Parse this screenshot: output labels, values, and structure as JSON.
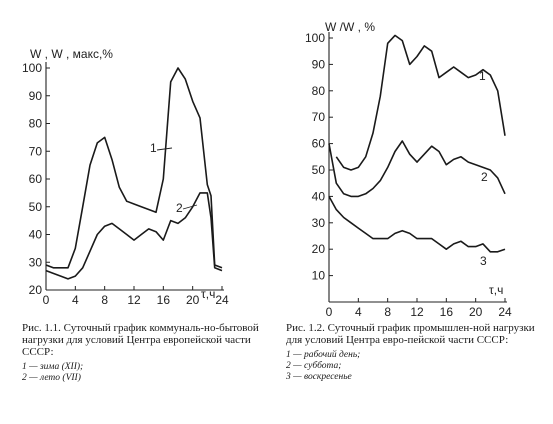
{
  "chart_data": [
    {
      "type": "line",
      "ylabel": "W , W , макс,%",
      "xlabel": "τ,ч",
      "xlim": [
        0,
        24
      ],
      "ylim": [
        20,
        100
      ],
      "xticks": [
        "0",
        "4",
        "8",
        "12",
        "16",
        "20",
        "24"
      ],
      "yticks": [
        "20",
        "30",
        "40",
        "50",
        "60",
        "70",
        "80",
        "90",
        "100"
      ],
      "series": [
        {
          "name": "1",
          "label": "1 — зима (XII);",
          "x": [
            0,
            1,
            2,
            3,
            4,
            5,
            6,
            7,
            8,
            9,
            10,
            11,
            12,
            13,
            14,
            15,
            16,
            17,
            18,
            19,
            20,
            21,
            22,
            22.5,
            23,
            24
          ],
          "y": [
            29,
            28,
            28,
            28,
            35,
            50,
            65,
            73,
            75,
            67,
            57,
            52,
            51,
            50,
            49,
            48,
            60,
            95,
            100,
            96,
            88,
            82,
            58,
            54,
            29,
            28
          ]
        },
        {
          "name": "2",
          "label": "2 — лето (VII)",
          "x": [
            0,
            1,
            2,
            3,
            4,
            5,
            6,
            7,
            8,
            9,
            10,
            11,
            12,
            13,
            14,
            15,
            16,
            17,
            18,
            19,
            20,
            21,
            22,
            22.5,
            23,
            24
          ],
          "y": [
            27,
            26,
            25,
            24,
            25,
            28,
            34,
            40,
            43,
            44,
            42,
            40,
            38,
            40,
            42,
            41,
            38,
            45,
            44,
            46,
            50,
            55,
            55,
            46,
            28,
            27
          ]
        }
      ],
      "caption_title": "Рис. 1.1. Суточный график коммуналь-но-бытовой нагрузки для условий Центра европейской части СССР:"
    },
    {
      "type": "line",
      "ylabel": "W /W , %",
      "xlabel": "τ,ч",
      "xlim": [
        0,
        24
      ],
      "ylim": [
        0,
        100
      ],
      "xticks": [
        "0",
        "4",
        "8",
        "12",
        "16",
        "20",
        "24"
      ],
      "yticks": [
        "10",
        "20",
        "30",
        "40",
        "50",
        "60",
        "70",
        "80",
        "90",
        "100"
      ],
      "series": [
        {
          "name": "1",
          "label": "1 — рабочий день;",
          "x": [
            1,
            2,
            3,
            4,
            5,
            6,
            7,
            8,
            9,
            10,
            11,
            12,
            13,
            14,
            15,
            16,
            17,
            18,
            19,
            20,
            21,
            22,
            23,
            24
          ],
          "y": [
            55,
            51,
            50,
            51,
            55,
            64,
            78,
            98,
            101,
            99,
            90,
            93,
            97,
            95,
            85,
            87,
            89,
            87,
            85,
            86,
            88,
            86,
            80,
            63
          ]
        },
        {
          "name": "2",
          "label": "2 — суббота;",
          "x": [
            0,
            1,
            2,
            3,
            4,
            5,
            6,
            7,
            8,
            9,
            10,
            11,
            12,
            13,
            14,
            15,
            16,
            17,
            18,
            19,
            20,
            21,
            22,
            23,
            24
          ],
          "y": [
            60,
            45,
            41,
            40,
            40,
            41,
            43,
            46,
            51,
            57,
            61,
            56,
            53,
            56,
            59,
            57,
            52,
            54,
            55,
            53,
            52,
            51,
            50,
            47,
            41
          ]
        },
        {
          "name": "3",
          "label": "3 — воскресенье",
          "x": [
            0,
            1,
            2,
            3,
            4,
            5,
            6,
            7,
            8,
            9,
            10,
            11,
            12,
            13,
            14,
            15,
            16,
            17,
            18,
            19,
            20,
            21,
            22,
            23,
            24
          ],
          "y": [
            40,
            35,
            32,
            30,
            28,
            26,
            24,
            24,
            24,
            26,
            27,
            26,
            24,
            24,
            24,
            22,
            20,
            22,
            23,
            21,
            21,
            22,
            19,
            19,
            20
          ]
        }
      ],
      "caption_title": "Рис. 1.2. Суточный график промышлен-ной нагрузки для условий Центра евро-пейской части СССР:"
    }
  ]
}
